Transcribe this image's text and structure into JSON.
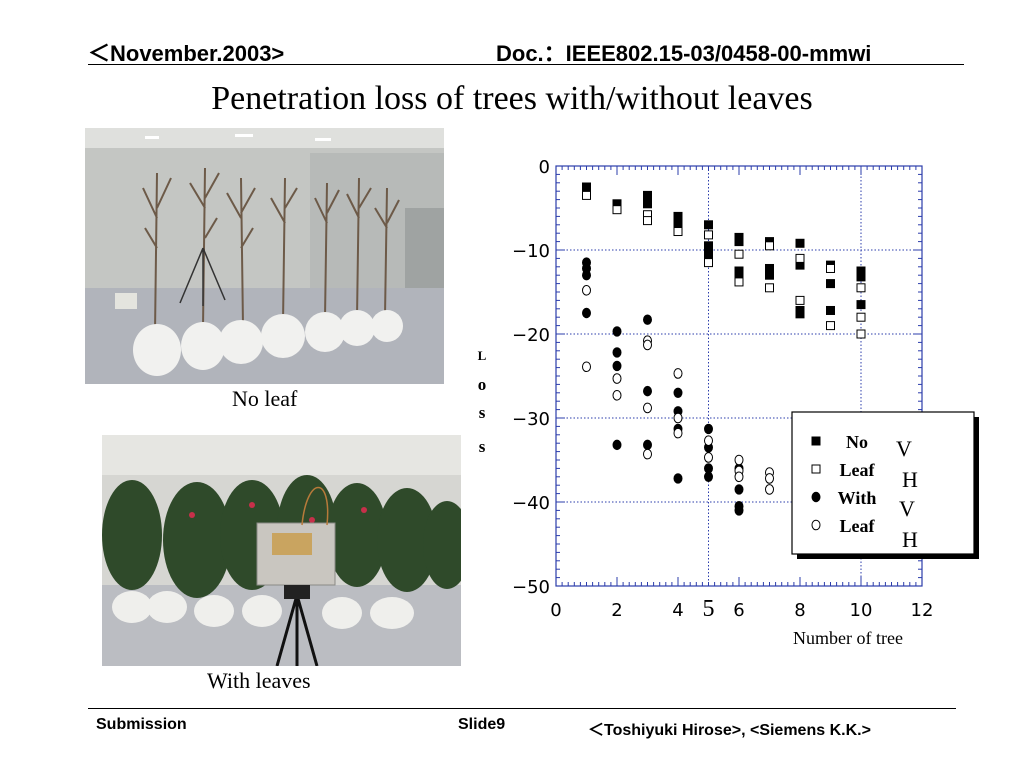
{
  "header": {
    "left": "＜November.2003>",
    "right": "Doc.：IEEE802.15-03/0458-00-mmwi"
  },
  "title": "Penetration loss of trees with/without leaves",
  "photos": {
    "no_leaf_caption": "No leaf",
    "with_leaves_caption": "With leaves"
  },
  "footer": {
    "left": "Submission",
    "center": "Slide9",
    "right": "＜Toshiyuki Hirose>, <Siemens K.K.>"
  },
  "chart_data": {
    "type": "scatter",
    "xlabel": "Number of tree",
    "ylabel": "Loss",
    "xlim": [
      0,
      12
    ],
    "ylim": [
      -50,
      0
    ],
    "xticks": [
      "0",
      "2",
      "4",
      "6",
      "8",
      "10",
      "12"
    ],
    "yticks": [
      "0",
      "−10",
      "−20",
      "−30",
      "−40",
      "−50"
    ],
    "extra_x_label": {
      "x": 5,
      "text": "5"
    },
    "grid": true,
    "legend": {
      "position": "right",
      "labels": [
        "No",
        "Leaf",
        "With",
        "Leaf"
      ],
      "pols": [
        "V",
        "H",
        "V",
        "H"
      ]
    },
    "series": [
      {
        "marker": "filled-square",
        "points": [
          [
            1,
            -2.5
          ],
          [
            1,
            -3
          ],
          [
            2,
            -4.5
          ],
          [
            2,
            -5
          ],
          [
            3,
            -3.5
          ],
          [
            3,
            -4
          ],
          [
            3,
            -4.5
          ],
          [
            4,
            -6
          ],
          [
            4,
            -6.8
          ],
          [
            4,
            -7.2
          ],
          [
            5,
            -7
          ],
          [
            5,
            -9.5
          ],
          [
            5,
            -10.5
          ],
          [
            6,
            -8.5
          ],
          [
            6,
            -9
          ],
          [
            6,
            -12.5
          ],
          [
            6,
            -13
          ],
          [
            7,
            -9
          ],
          [
            7,
            -12.2
          ],
          [
            7,
            -13
          ],
          [
            8,
            -9.2
          ],
          [
            8,
            -11.8
          ],
          [
            8,
            -17.2
          ],
          [
            8,
            -17.6
          ],
          [
            9,
            -11.8
          ],
          [
            9,
            -14
          ],
          [
            9,
            -17.2
          ],
          [
            10,
            -12.5
          ],
          [
            10,
            -13.2
          ],
          [
            10,
            -16.5
          ]
        ]
      },
      {
        "marker": "open-square",
        "points": [
          [
            1,
            -3.5
          ],
          [
            2,
            -5.2
          ],
          [
            3,
            -5.8
          ],
          [
            3,
            -6.5
          ],
          [
            4,
            -7.8
          ],
          [
            5,
            -8.2
          ],
          [
            5,
            -11.5
          ],
          [
            6,
            -10.5
          ],
          [
            6,
            -13.8
          ],
          [
            7,
            -9.5
          ],
          [
            7,
            -14.5
          ],
          [
            8,
            -11
          ],
          [
            8,
            -16
          ],
          [
            9,
            -12.2
          ],
          [
            9,
            -19
          ],
          [
            10,
            -14.5
          ],
          [
            10,
            -18
          ],
          [
            10,
            -20
          ]
        ]
      },
      {
        "marker": "filled-circle",
        "points": [
          [
            1,
            -11.5
          ],
          [
            1,
            -12.2
          ],
          [
            1,
            -13
          ],
          [
            1,
            -17.5
          ],
          [
            2,
            -19.7
          ],
          [
            2,
            -22.2
          ],
          [
            2,
            -23.8
          ],
          [
            2,
            -33.2
          ],
          [
            3,
            -18.3
          ],
          [
            3,
            -26.8
          ],
          [
            3,
            -33.2
          ],
          [
            4,
            -27
          ],
          [
            4,
            -29.2
          ],
          [
            4,
            -31.3
          ],
          [
            4,
            -37.2
          ],
          [
            5,
            -31.3
          ],
          [
            5,
            -33.5
          ],
          [
            5,
            -36
          ],
          [
            5,
            -37
          ],
          [
            6,
            -36
          ],
          [
            6,
            -38.5
          ],
          [
            6,
            -40.5
          ],
          [
            6,
            -41
          ]
        ]
      },
      {
        "marker": "open-circle",
        "points": [
          [
            1,
            -14.8
          ],
          [
            1,
            -23.9
          ],
          [
            2,
            -25.3
          ],
          [
            2,
            -27.3
          ],
          [
            3,
            -20.8
          ],
          [
            3,
            -21.3
          ],
          [
            3,
            -28.8
          ],
          [
            3,
            -34.3
          ],
          [
            4,
            -24.7
          ],
          [
            4,
            -30
          ],
          [
            4,
            -31.8
          ],
          [
            5,
            -32.7
          ],
          [
            5,
            -34.7
          ],
          [
            6,
            -35
          ],
          [
            6,
            -36.3
          ],
          [
            6,
            -37
          ],
          [
            7,
            -36.5
          ],
          [
            7,
            -37.2
          ],
          [
            7,
            -38.5
          ]
        ]
      }
    ]
  }
}
